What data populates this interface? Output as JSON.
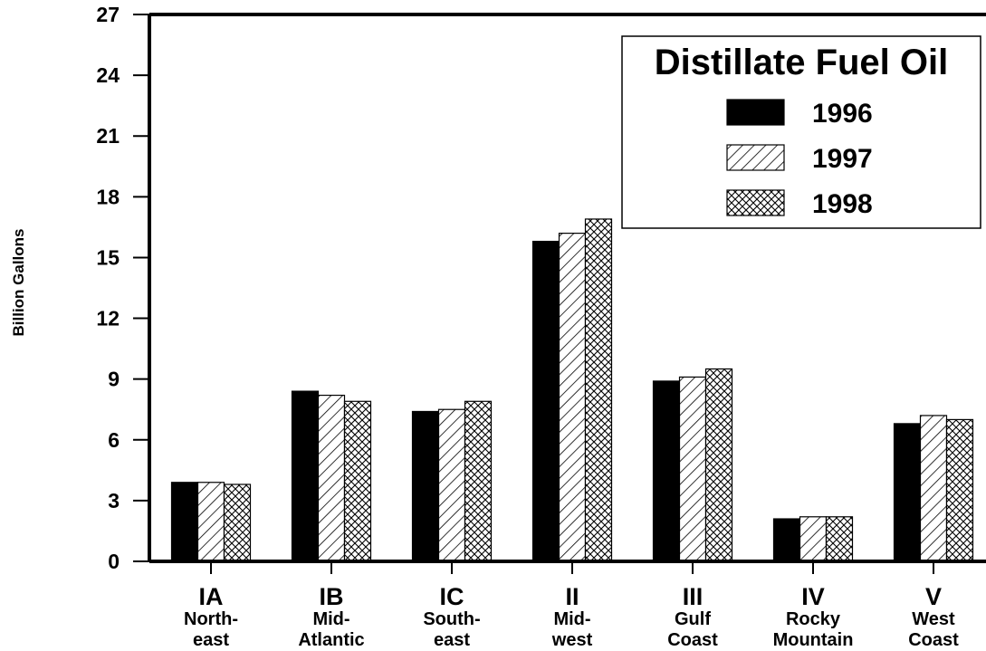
{
  "chart_data": {
    "type": "bar",
    "title": "Distillate Fuel Oil",
    "ylabel": "Billion Gallons",
    "xlabel": "",
    "ylim": [
      0,
      27
    ],
    "yticks": [
      0,
      3,
      6,
      9,
      12,
      15,
      18,
      21,
      24,
      27
    ],
    "grid": false,
    "legend_position": "top-right",
    "categories": [
      {
        "code": "IA",
        "name_lines": [
          "North-",
          "east"
        ]
      },
      {
        "code": "IB",
        "name_lines": [
          "Mid-",
          "Atlantic"
        ]
      },
      {
        "code": "IC",
        "name_lines": [
          "South-",
          "east"
        ]
      },
      {
        "code": "II",
        "name_lines": [
          "Mid-",
          "west"
        ]
      },
      {
        "code": "III",
        "name_lines": [
          "Gulf",
          "Coast"
        ]
      },
      {
        "code": "IV",
        "name_lines": [
          "Rocky",
          "Mountain"
        ]
      },
      {
        "code": "V",
        "name_lines": [
          "West",
          "Coast"
        ]
      }
    ],
    "series": [
      {
        "name": "1996",
        "pattern": "solid",
        "values": [
          3.9,
          8.4,
          7.4,
          15.8,
          8.9,
          2.1,
          6.8
        ]
      },
      {
        "name": "1997",
        "pattern": "diagonal-hatch",
        "values": [
          3.9,
          8.2,
          7.5,
          16.2,
          9.1,
          2.2,
          7.2
        ]
      },
      {
        "name": "1998",
        "pattern": "crosshatch",
        "values": [
          3.8,
          7.9,
          7.9,
          16.9,
          9.5,
          2.2,
          7.0
        ]
      }
    ],
    "colors": {
      "bar_fill": "#000000",
      "background": "#ffffff"
    }
  }
}
